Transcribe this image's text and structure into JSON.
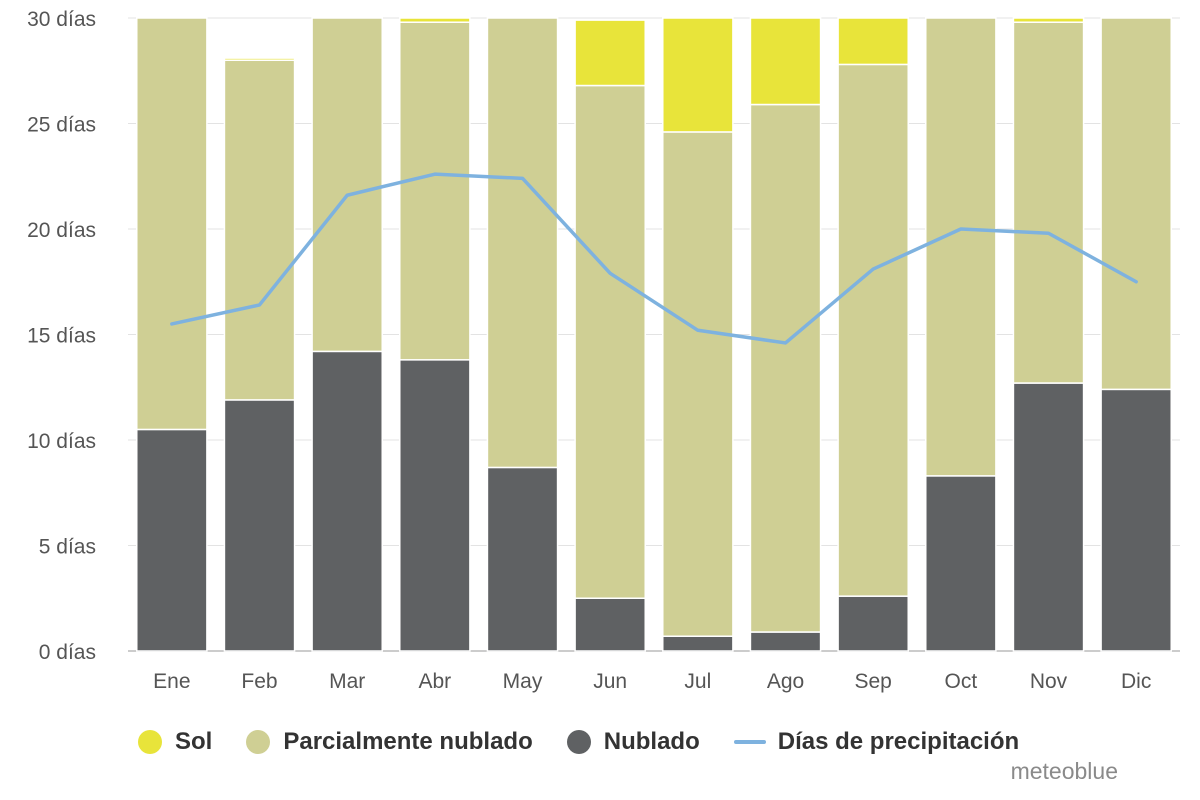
{
  "chart_data": {
    "type": "bar",
    "stacked": true,
    "categories": [
      "Ene",
      "Feb",
      "Mar",
      "Abr",
      "May",
      "Jun",
      "Jul",
      "Ago",
      "Sep",
      "Oct",
      "Nov",
      "Dic"
    ],
    "y_tick_labels": [
      "0 días",
      "5 días",
      "10 días",
      "15 días",
      "20 días",
      "25 días",
      "30 días"
    ],
    "ylim": [
      0,
      30
    ],
    "grid": true,
    "legend_position": "bottom",
    "series": [
      {
        "name": "Nublado",
        "type": "bar",
        "color": "#5f6163",
        "values": [
          10.5,
          11.9,
          14.2,
          13.8,
          8.7,
          2.5,
          0.7,
          0.9,
          2.6,
          8.3,
          12.7,
          12.4
        ]
      },
      {
        "name": "Parcialmente nublado",
        "type": "bar",
        "color": "#cfcf94",
        "values": [
          19.5,
          16.1,
          15.8,
          16.0,
          21.3,
          24.3,
          23.9,
          25.0,
          25.2,
          21.7,
          17.1,
          17.6
        ]
      },
      {
        "name": "Sol",
        "type": "bar",
        "color": "#e8e43a",
        "values": [
          0.0,
          0.1,
          0.0,
          0.2,
          0.0,
          3.1,
          5.4,
          4.1,
          2.2,
          0.0,
          0.2,
          0.0
        ]
      },
      {
        "name": "Días de precipitación",
        "type": "line",
        "color": "#7eb2df",
        "values": [
          15.5,
          16.4,
          21.6,
          22.6,
          22.4,
          17.9,
          15.2,
          14.6,
          18.1,
          20.0,
          19.8,
          17.5
        ]
      }
    ]
  },
  "legend": {
    "items": [
      {
        "label": "Sol",
        "color": "#e8e43a",
        "shape": "circle"
      },
      {
        "label": "Parcialmente nublado",
        "color": "#cfcf94",
        "shape": "circle"
      },
      {
        "label": "Nublado",
        "color": "#5f6163",
        "shape": "circle"
      },
      {
        "label": "Días de precipitación",
        "color": "#7eb2df",
        "shape": "line"
      }
    ]
  },
  "watermark": "meteoblue"
}
